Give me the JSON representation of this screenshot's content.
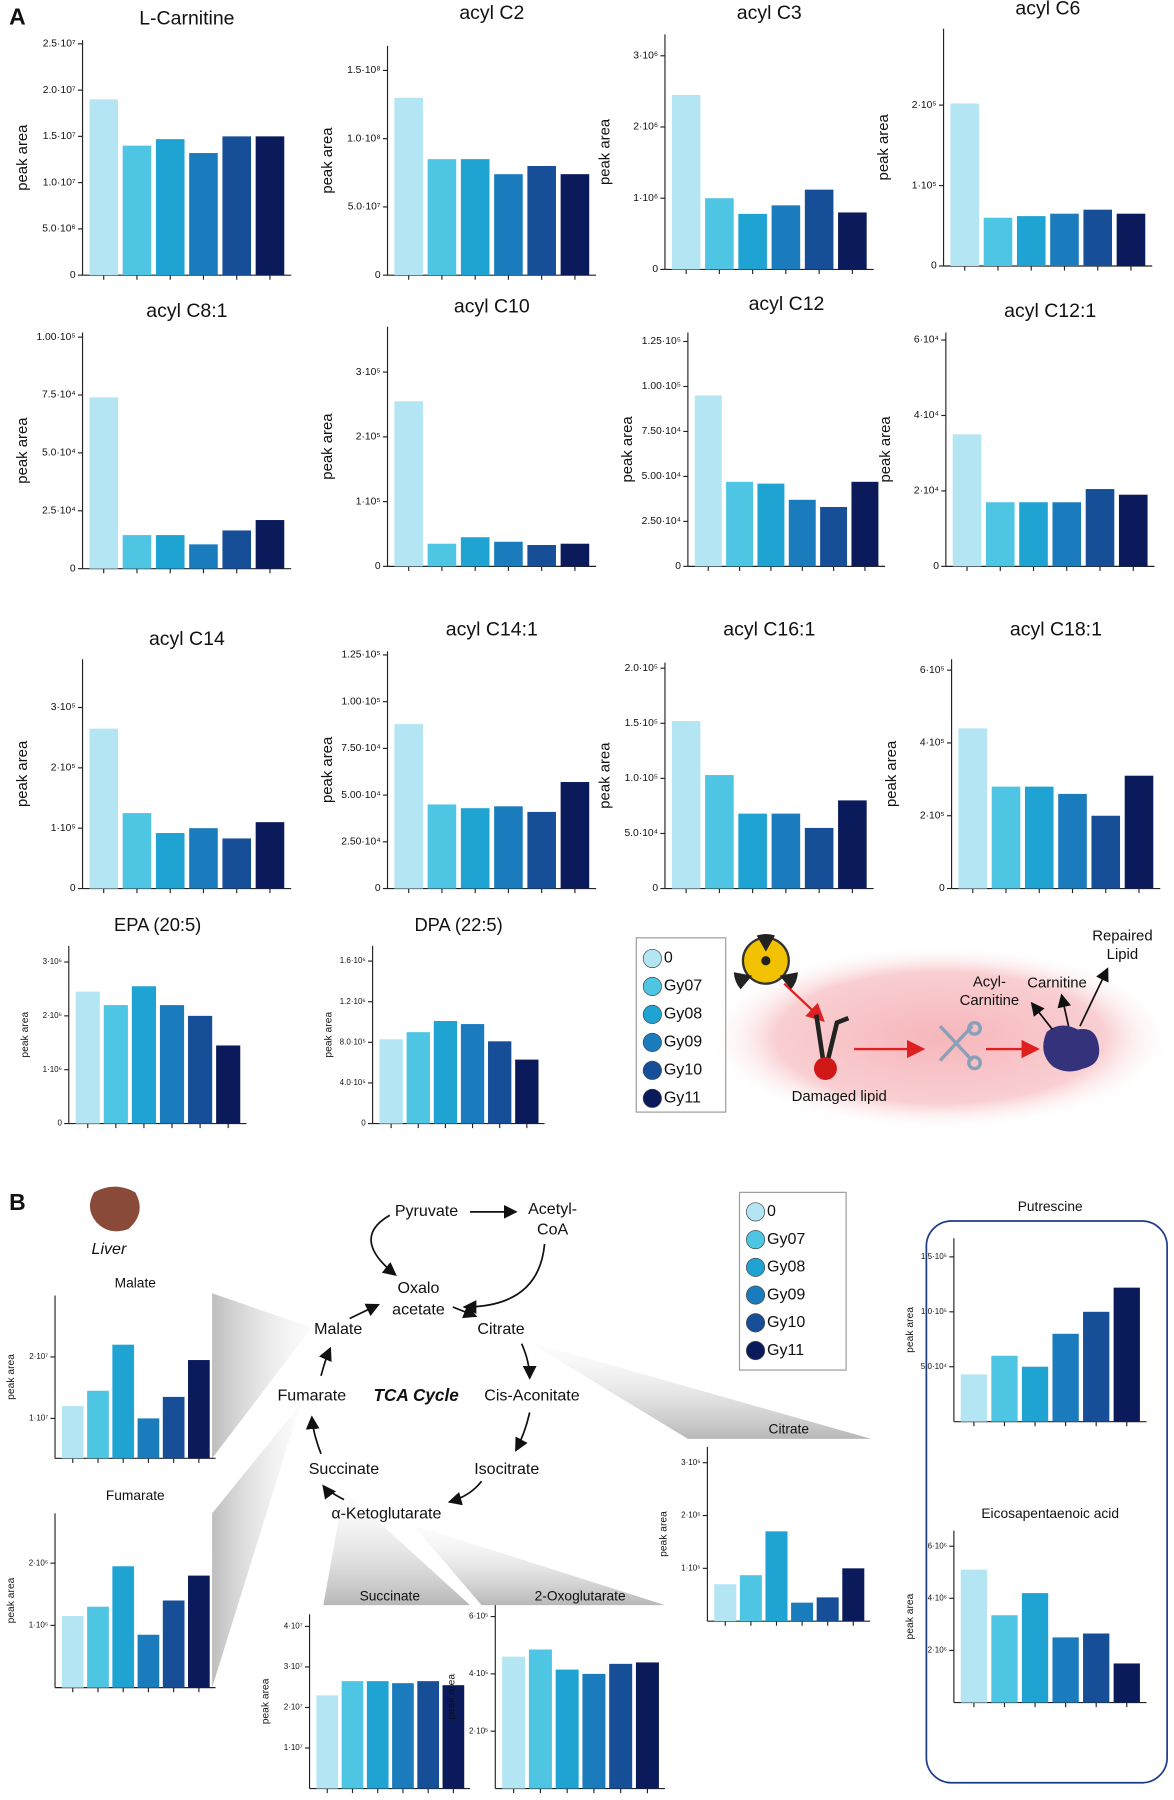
{
  "panel_labels": [
    "A",
    "B"
  ],
  "group_colors": [
    "#b3e5f3",
    "#4ec5e3",
    "#1fa3d2",
    "#1a7cbd",
    "#164f98",
    "#0b1a5a"
  ],
  "legends": [
    {
      "entries": [
        "0",
        "Gy07",
        "Gy08",
        "Gy09",
        "Gy10",
        "Gy11"
      ]
    },
    {
      "entries": [
        "0",
        "Gy07",
        "Gy08",
        "Gy09",
        "Gy10",
        "Gy11"
      ]
    }
  ],
  "schematic": {
    "acyl_carnitine": [
      "Acyl-",
      "Carnitine"
    ],
    "carnitine": "Carnitine",
    "repaired_lipid": [
      "Repaired",
      "Lipid"
    ],
    "damaged_lipid": "Damaged lipid"
  },
  "tca": {
    "organ": "Liver",
    "pyruvate": "Pyruvate",
    "acetyl_coa": [
      "Acetyl-",
      "CoA"
    ],
    "oxaloacetate": [
      "Oxalo",
      "acetate"
    ],
    "malate": "Malate",
    "citrate": "Citrate",
    "fumarate": "Fumarate",
    "cycle": "TCA Cycle",
    "cis_aconitate": "Cis-Aconitate",
    "isocitrate": "Isocitrate",
    "succinate": "Succinate",
    "ketoglutarate": "α-Ketoglutarate"
  },
  "chart_data": [
    {
      "type": "bar",
      "title": "L-Carnitine",
      "ylabel": "peak area",
      "values": [
        19000000,
        14000000,
        14700000,
        13200000,
        15000000,
        15000000
      ],
      "ylim": [
        0,
        25400000
      ],
      "yticks": [
        0,
        {
          "value": 5000000,
          "label": "5.0·10⁶"
        },
        {
          "value": 10000000,
          "label": "1.0·10⁷"
        },
        {
          "value": 15000000,
          "label": "1.5·10⁷"
        },
        {
          "value": 20000000,
          "label": "2.0·10⁷"
        },
        {
          "value": 25000000,
          "label": "2.5·10⁷"
        }
      ]
    },
    {
      "type": "bar",
      "title": "acyl C2",
      "ylabel": "peak area",
      "values": [
        130000000,
        85000000,
        85000000,
        74000000,
        80000000,
        74000000
      ],
      "ylim": [
        0,
        168000000
      ],
      "yticks": [
        0,
        {
          "value": 50000000,
          "label": "5.0·10⁷"
        },
        {
          "value": 100000000,
          "label": "1.0·10⁸"
        },
        {
          "value": 150000000,
          "label": "1.5·10⁸"
        }
      ]
    },
    {
      "type": "bar",
      "title": "acyl C3",
      "ylabel": "peak area",
      "values": [
        2450000,
        1000000,
        780000,
        900000,
        1120000,
        800000
      ],
      "ylim": [
        0,
        3300000
      ],
      "yticks": [
        0,
        {
          "value": 1000000,
          "label": "1·10⁶"
        },
        {
          "value": 2000000,
          "label": "2·10⁶"
        },
        {
          "value": 3000000,
          "label": "3·10⁶"
        }
      ]
    },
    {
      "type": "bar",
      "title": "acyl C6",
      "ylabel": "peak area",
      "values": [
        202000,
        60000,
        62000,
        65000,
        70000,
        65000
      ],
      "ylim": [
        0,
        295000
      ],
      "yticks": [
        0,
        {
          "value": 100000,
          "label": "1·10⁵"
        },
        {
          "value": 200000,
          "label": "2·10⁵"
        }
      ]
    },
    {
      "type": "bar",
      "title": "acyl C8:1",
      "ylabel": "peak area",
      "values": [
        74000,
        14500,
        14500,
        10500,
        16500,
        21000
      ],
      "ylim": [
        0,
        102000
      ],
      "yticks": [
        0,
        {
          "value": 25000,
          "label": "2.5·10⁴"
        },
        {
          "value": 50000,
          "label": "5.0·10⁴"
        },
        {
          "value": 75000,
          "label": "7.5·10⁴"
        },
        {
          "value": 100000,
          "label": "1.00·10⁵"
        }
      ]
    },
    {
      "type": "bar",
      "title": "acyl C10",
      "ylabel": "peak area",
      "values": [
        255000,
        35000,
        45000,
        38000,
        33000,
        35000
      ],
      "ylim": [
        0,
        370000
      ],
      "yticks": [
        0,
        {
          "value": 100000,
          "label": "1·10⁵"
        },
        {
          "value": 200000,
          "label": "2·10⁵"
        },
        {
          "value": 300000,
          "label": "3·10⁵"
        }
      ]
    },
    {
      "type": "bar",
      "title": "acyl C12",
      "ylabel": "peak area",
      "values": [
        95000,
        47000,
        46000,
        37000,
        33000,
        47000
      ],
      "ylim": [
        0,
        130000
      ],
      "yticks": [
        0,
        {
          "value": 25000,
          "label": "2.50·10⁴"
        },
        {
          "value": 50000,
          "label": "5.00·10⁴"
        },
        {
          "value": 75000,
          "label": "7.50·10⁴"
        },
        {
          "value": 100000,
          "label": "1.00·10⁵"
        },
        {
          "value": 125000,
          "label": "1.25·10⁵"
        }
      ]
    },
    {
      "type": "bar",
      "title": "acyl C12:1",
      "ylabel": "peak area",
      "values": [
        35000,
        17000,
        17000,
        17000,
        20500,
        19000
      ],
      "ylim": [
        0,
        62000
      ],
      "yticks": [
        0,
        {
          "value": 20000,
          "label": "2·10⁴"
        },
        {
          "value": 40000,
          "label": "4·10⁴"
        },
        {
          "value": 60000,
          "label": "6·10⁴"
        }
      ]
    },
    {
      "type": "bar",
      "title": "acyl C14",
      "ylabel": "peak area",
      "values": [
        265000,
        125000,
        92000,
        100000,
        83000,
        110000
      ],
      "ylim": [
        0,
        380000
      ],
      "yticks": [
        0,
        {
          "value": 100000,
          "label": "1·10⁵"
        },
        {
          "value": 200000,
          "label": "2·10⁵"
        },
        {
          "value": 300000,
          "label": "3·10⁵"
        }
      ]
    },
    {
      "type": "bar",
      "title": "acyl C14:1",
      "ylabel": "peak area",
      "values": [
        88000,
        45000,
        43000,
        44000,
        41000,
        57000
      ],
      "ylim": [
        0,
        127000
      ],
      "yticks": [
        0,
        {
          "value": 25000,
          "label": "2.50·10⁴"
        },
        {
          "value": 50000,
          "label": "5.00·10⁴"
        },
        {
          "value": 75000,
          "label": "7.50·10⁴"
        },
        {
          "value": 100000,
          "label": "1.00·10⁵"
        },
        {
          "value": 125000,
          "label": "1.25·10⁵"
        }
      ]
    },
    {
      "type": "bar",
      "title": "acyl C16:1",
      "ylabel": "peak area",
      "values": [
        152000,
        103000,
        68000,
        68000,
        55000,
        80000
      ],
      "ylim": [
        0,
        205000
      ],
      "yticks": [
        0,
        {
          "value": 50000,
          "label": "5.0·10⁴"
        },
        {
          "value": 100000,
          "label": "1.0·10⁵"
        },
        {
          "value": 150000,
          "label": "1.5·10⁵"
        },
        {
          "value": 200000,
          "label": "2.0·10⁵"
        }
      ]
    },
    {
      "type": "bar",
      "title": "acyl C18:1",
      "ylabel": "peak area",
      "values": [
        440000,
        280000,
        280000,
        260000,
        200000,
        310000
      ],
      "ylim": [
        0,
        630000
      ],
      "yticks": [
        0,
        {
          "value": 200000,
          "label": "2·10⁵"
        },
        {
          "value": 400000,
          "label": "4·10⁵"
        },
        {
          "value": 600000,
          "label": "6·10⁵"
        }
      ]
    },
    {
      "type": "bar",
      "title": "EPA (20:5)",
      "ylabel": "peak area",
      "values": [
        2450000,
        2200000,
        2550000,
        2200000,
        2000000,
        1450000
      ],
      "ylim": [
        0,
        3300000
      ],
      "yticks": [
        0,
        {
          "value": 1000000,
          "label": "1·10⁶"
        },
        {
          "value": 2000000,
          "label": "2·10⁶"
        },
        {
          "value": 3000000,
          "label": "3·10⁶"
        }
      ]
    },
    {
      "type": "bar",
      "title": "DPA (22:5)",
      "ylabel": "peak area",
      "values": [
        830000,
        900000,
        1010000,
        980000,
        810000,
        630000
      ],
      "ylim": [
        0,
        1750000
      ],
      "yticks": [
        0,
        {
          "value": 400000,
          "label": "4.0·10⁵"
        },
        {
          "value": 800000,
          "label": "8.0·10⁵"
        },
        {
          "value": 1200000,
          "label": "1.2·10⁶"
        },
        {
          "value": 1600000,
          "label": "1.6·10⁶"
        }
      ]
    },
    {
      "type": "bar",
      "title": "Malate",
      "ylabel": "peak area",
      "values": [
        12000000,
        14500000,
        22000000,
        10000000,
        13500000,
        19500000
      ],
      "ylim": [
        3500000,
        30000000
      ],
      "yticks": [
        {
          "value": 10000000,
          "label": "1·10⁷"
        },
        {
          "value": 20000000,
          "label": "2·10⁷"
        }
      ]
    },
    {
      "type": "bar",
      "title": "Fumarate",
      "ylabel": "peak area",
      "values": [
        1150000,
        1300000,
        1950000,
        850000,
        1400000,
        1800000
      ],
      "ylim": [
        0,
        2800000
      ],
      "yticks": [
        {
          "value": 1000000,
          "label": "1·10⁶"
        },
        {
          "value": 2000000,
          "label": "2·10⁶"
        }
      ]
    },
    {
      "type": "bar",
      "title": "Succinate",
      "ylabel": "peak area",
      "values": [
        23000000,
        26500000,
        26500000,
        26000000,
        26500000,
        25500000
      ],
      "ylim": [
        0,
        43000000
      ],
      "yticks": [
        {
          "value": 10000000,
          "label": "1·10⁷"
        },
        {
          "value": 20000000,
          "label": "2·10⁷"
        },
        {
          "value": 30000000,
          "label": "3·10⁷"
        },
        {
          "value": 40000000,
          "label": "4·10⁷"
        }
      ]
    },
    {
      "type": "bar",
      "title": "2-Oxoglutarate",
      "ylabel": "peak area",
      "values": [
        460000,
        485000,
        415000,
        400000,
        435000,
        440000
      ],
      "ylim": [
        0,
        640000
      ],
      "yticks": [
        {
          "value": 200000,
          "label": "2·10⁵"
        },
        {
          "value": 400000,
          "label": "4·10⁵"
        },
        {
          "value": 600000,
          "label": "6·10⁵"
        }
      ]
    },
    {
      "type": "bar",
      "title": "Citrate",
      "ylabel": "peak area",
      "values": [
        700000,
        870000,
        1700000,
        350000,
        450000,
        1000000
      ],
      "ylim": [
        0,
        3300000
      ],
      "yticks": [
        {
          "value": 1000000,
          "label": "1·10⁶"
        },
        {
          "value": 2000000,
          "label": "2·10⁶"
        },
        {
          "value": 3000000,
          "label": "3·10⁶"
        }
      ]
    },
    {
      "type": "bar",
      "title": "Putrescine",
      "ylabel": "peak area",
      "values": [
        43000,
        60000,
        50000,
        80000,
        100000,
        122000
      ],
      "ylim": [
        0,
        167000
      ],
      "yticks": [
        {
          "value": 50000,
          "label": "5.0·10⁴"
        },
        {
          "value": 100000,
          "label": "1.0·10⁵"
        },
        {
          "value": 150000,
          "label": "1.5·10⁵"
        }
      ]
    },
    {
      "type": "bar",
      "title": "Eicosapentaenoic acid",
      "ylabel": "peak area",
      "values": [
        5100000,
        3350000,
        4200000,
        2500000,
        2650000,
        1500000
      ],
      "ylim": [
        0,
        6600000
      ],
      "yticks": [
        {
          "value": 2000000,
          "label": "2·10⁶"
        },
        {
          "value": 4000000,
          "label": "4·10⁶"
        },
        {
          "value": 6000000,
          "label": "6·10⁶"
        }
      ]
    }
  ]
}
